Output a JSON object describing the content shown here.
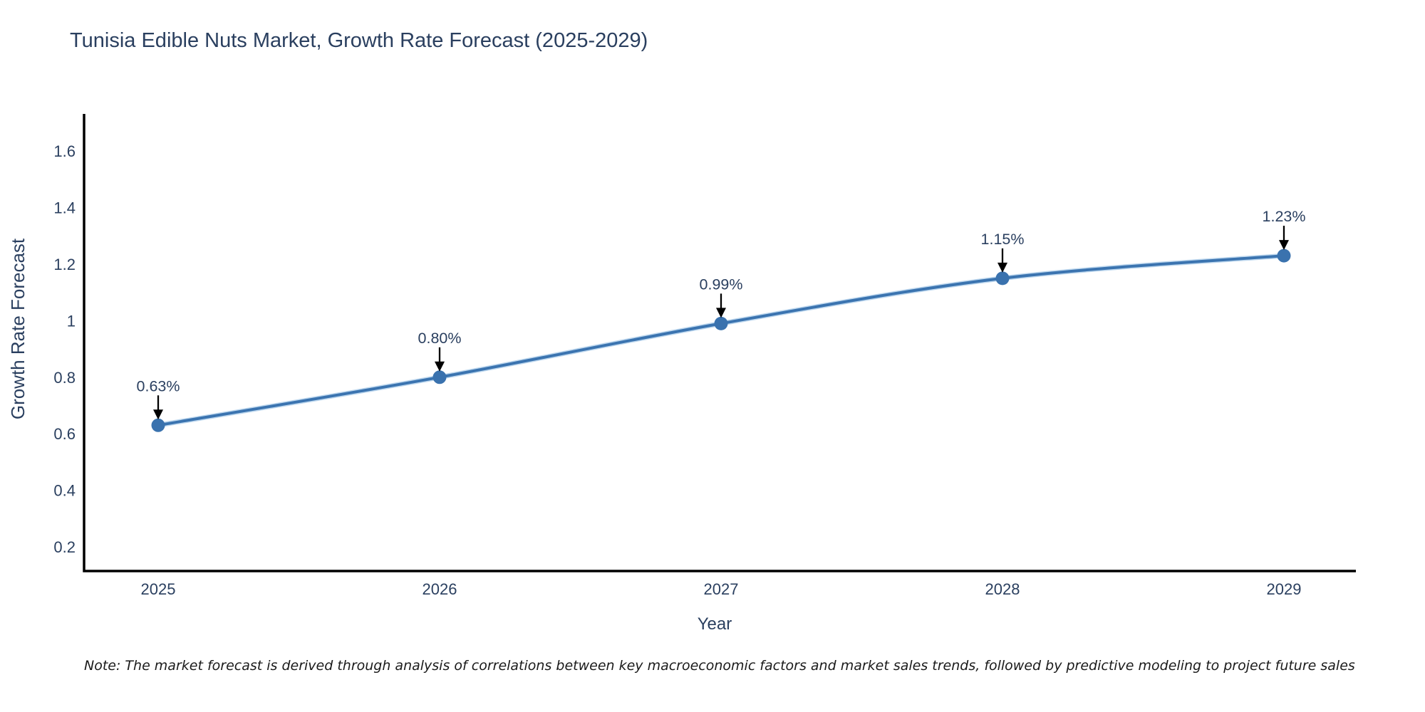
{
  "header": {
    "title": "Tunisia Edible Nuts Market, Growth Rate Forecast (2025-2029)"
  },
  "footer": {
    "note": "Note: The market forecast is derived through analysis of correlations between key macroeconomic factors and market sales trends, followed by predictive modeling to project future sales"
  },
  "chart_data": {
    "type": "line",
    "title": "Tunisia Edible Nuts Market, Growth Rate Forecast (2025-2029)",
    "xlabel": "Year",
    "ylabel": "Growth Rate Forecast",
    "categories": [
      "2025",
      "2026",
      "2027",
      "2028",
      "2029"
    ],
    "values": [
      0.63,
      0.8,
      0.99,
      1.15,
      1.23
    ],
    "point_labels": [
      "0.63%",
      "0.80%",
      "0.99%",
      "1.15%",
      "1.23%"
    ],
    "ytick_values": [
      0.2,
      0.4,
      0.6,
      0.8,
      1,
      1.2,
      1.4,
      1.6
    ],
    "ytick_labels": [
      "0.2",
      "0.4",
      "0.6",
      "0.8",
      "1",
      "1.2",
      "1.4",
      "1.6"
    ],
    "ylim": [
      0.11,
      1.73
    ],
    "grid": false,
    "legend_position": "none",
    "annotations_have_arrows": true,
    "colors": {
      "line": "#3b74b0",
      "line_halo": "#bdd7ee",
      "marker": "#3a72ae",
      "arrow": "#000000",
      "axis": "#000000",
      "text": "#2a3f5f"
    }
  }
}
